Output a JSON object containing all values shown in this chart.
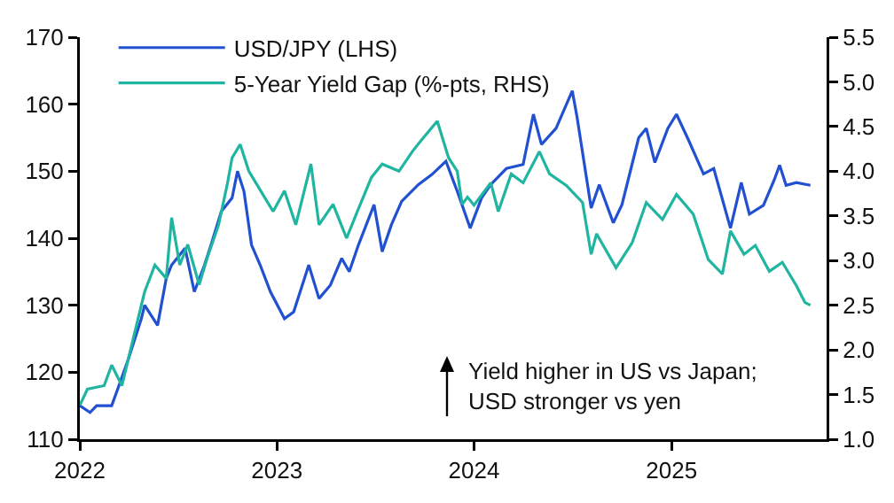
{
  "chart_data": {
    "type": "line",
    "legend": "top left",
    "grid": false,
    "marker": "none",
    "line_style": "solid",
    "xlim": [
      "2022-01-01",
      "2025-10-15"
    ],
    "xticks": [
      {
        "value": "2022-01-01",
        "label": "2022"
      },
      {
        "value": "2023-01-01",
        "label": "2023"
      },
      {
        "value": "2024-01-01",
        "label": "2024"
      },
      {
        "value": "2025-01-01",
        "label": "2025"
      }
    ],
    "ylim": [
      110,
      170
    ],
    "yticks": [
      110,
      120,
      130,
      140,
      150,
      160,
      170
    ],
    "y2lim": [
      1.0,
      5.5
    ],
    "y2ticks": [
      {
        "value": 1,
        "label": "1.0"
      },
      {
        "value": 1.5,
        "label": "1.5"
      },
      {
        "value": 2,
        "label": "2.0"
      },
      {
        "value": 2.5,
        "label": "2.5"
      },
      {
        "value": 3,
        "label": "3.0"
      },
      {
        "value": 3.5,
        "label": "3.5"
      },
      {
        "value": 4,
        "label": "4.0"
      },
      {
        "value": 4.5,
        "label": "4.5"
      },
      {
        "value": 5,
        "label": "5.0"
      },
      {
        "value": 5.5,
        "label": "5.5"
      }
    ],
    "annotations": [
      "Yield higher in US vs Japan;\nUSD stronger vs yen"
    ],
    "series": [
      {
        "name": "USD/JPY (LHS)",
        "color": "#2150d0",
        "x": [
          "2022-01-01",
          "2022-01-20",
          "2022-02-01",
          "2022-03-01",
          "2022-03-10",
          "2022-04-01",
          "2022-04-25",
          "2022-05-01",
          "2022-05-25",
          "2022-06-10",
          "2022-06-20",
          "2022-07-15",
          "2022-08-01",
          "2022-08-20",
          "2022-09-01",
          "2022-09-20",
          "2022-10-10",
          "2022-10-20",
          "2022-11-01",
          "2022-11-15",
          "2022-12-01",
          "2022-12-20",
          "2023-01-15",
          "2023-02-01",
          "2023-03-01",
          "2023-03-20",
          "2023-04-10",
          "2023-05-01",
          "2023-05-15",
          "2023-06-01",
          "2023-06-30",
          "2023-07-15",
          "2023-08-01",
          "2023-08-20",
          "2023-09-20",
          "2023-10-15",
          "2023-11-10",
          "2023-12-01",
          "2023-12-25",
          "2024-01-15",
          "2024-02-01",
          "2024-03-01",
          "2024-04-01",
          "2024-04-20",
          "2024-05-05",
          "2024-06-01",
          "2024-07-01",
          "2024-07-10",
          "2024-08-05",
          "2024-08-20",
          "2024-09-15",
          "2024-10-01",
          "2024-11-01",
          "2024-11-15",
          "2024-12-01",
          "2024-12-25",
          "2025-01-10",
          "2025-02-01",
          "2025-03-01",
          "2025-03-20",
          "2025-04-20",
          "2025-05-10",
          "2025-05-25",
          "2025-06-20",
          "2025-07-10",
          "2025-07-20",
          "2025-08-01",
          "2025-08-20",
          "2025-09-15"
        ],
        "values": [
          115,
          114,
          115,
          115,
          117,
          122,
          128,
          130,
          127,
          134,
          136,
          138.5,
          132,
          136,
          139,
          144,
          146,
          150,
          147,
          139,
          136,
          132,
          128,
          129,
          136,
          131,
          133,
          137,
          135,
          139,
          145,
          138,
          142,
          145.5,
          148,
          149.5,
          151.5,
          147,
          141.5,
          146,
          148,
          150.4,
          151,
          158.5,
          154,
          156.4,
          162,
          158,
          144.5,
          148,
          142.3,
          145,
          155,
          156.4,
          151.3,
          156.4,
          158.5,
          154.7,
          149.6,
          150.4,
          141.5,
          148.3,
          143.6,
          144.9,
          148.7,
          150.9,
          147.9,
          148.3,
          147.9
        ]
      },
      {
        "name": "5-Year Yield Gap (%-pts, RHS)",
        "color": "#1fb5a0",
        "axis": "y2",
        "x": [
          "2022-01-01",
          "2022-01-15",
          "2022-02-15",
          "2022-03-01",
          "2022-03-20",
          "2022-04-10",
          "2022-05-01",
          "2022-05-20",
          "2022-06-10",
          "2022-06-20",
          "2022-07-05",
          "2022-07-20",
          "2022-08-10",
          "2022-08-25",
          "2022-09-15",
          "2022-10-01",
          "2022-10-10",
          "2022-10-25",
          "2022-11-10",
          "2022-12-10",
          "2022-12-25",
          "2023-01-15",
          "2023-02-05",
          "2023-03-05",
          "2023-03-20",
          "2023-04-15",
          "2023-05-10",
          "2023-05-30",
          "2023-06-25",
          "2023-07-15",
          "2023-08-15",
          "2023-09-10",
          "2023-09-30",
          "2023-10-25",
          "2023-11-15",
          "2023-12-01",
          "2023-12-10",
          "2023-12-20",
          "2024-01-01",
          "2024-02-01",
          "2024-02-15",
          "2024-03-10",
          "2024-04-01",
          "2024-05-01",
          "2024-05-20",
          "2024-06-20",
          "2024-07-20",
          "2024-08-05",
          "2024-08-15",
          "2024-09-20",
          "2024-10-20",
          "2024-11-15",
          "2024-12-15",
          "2025-01-10",
          "2025-02-10",
          "2025-03-10",
          "2025-04-05",
          "2025-04-20",
          "2025-05-15",
          "2025-06-05",
          "2025-07-01",
          "2025-07-25",
          "2025-08-20",
          "2025-09-05",
          "2025-09-15"
        ],
        "values": [
          1.38,
          1.56,
          1.6,
          1.83,
          1.6,
          2.13,
          2.65,
          2.95,
          2.8,
          3.48,
          2.95,
          3.18,
          2.73,
          3.03,
          3.4,
          3.85,
          4.15,
          4.3,
          4.0,
          3.7,
          3.55,
          3.78,
          3.4,
          4.08,
          3.4,
          3.63,
          3.25,
          3.55,
          3.93,
          4.08,
          4.0,
          4.23,
          4.38,
          4.56,
          4.15,
          4.0,
          3.63,
          3.71,
          3.62,
          3.87,
          3.55,
          3.97,
          3.87,
          4.22,
          3.97,
          3.84,
          3.65,
          3.07,
          3.3,
          2.92,
          3.2,
          3.65,
          3.46,
          3.74,
          3.52,
          3.01,
          2.85,
          3.33,
          3.07,
          3.17,
          2.88,
          2.98,
          2.72,
          2.53,
          2.5
        ]
      }
    ]
  }
}
